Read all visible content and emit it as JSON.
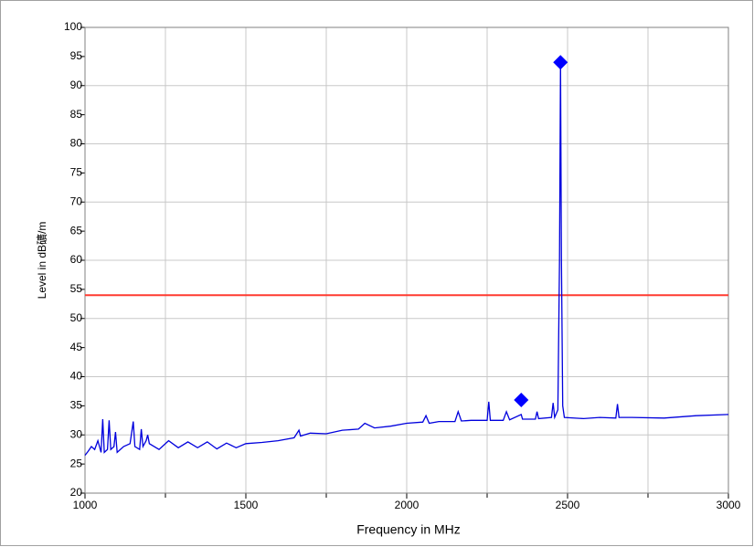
{
  "chart_data": {
    "type": "line",
    "x_label": "Frequency in MHz",
    "y_label": "Level in dB礦/m",
    "xlim": [
      1000,
      3000
    ],
    "ylim": [
      20,
      100
    ],
    "xticks": [
      1000,
      1500,
      2000,
      2500,
      3000
    ],
    "x_minor_ticks": [
      1250,
      1750,
      2250,
      2750
    ],
    "yticks": [
      20,
      25,
      30,
      35,
      40,
      45,
      50,
      55,
      60,
      65,
      70,
      75,
      80,
      85,
      90,
      95,
      100
    ],
    "y_grid": [
      30,
      40,
      50,
      60,
      70,
      80,
      90
    ],
    "grid": true,
    "hlines": [
      {
        "value": 54,
        "color": "#ff3b30"
      }
    ],
    "series": [
      {
        "color": "#0000dd",
        "style": "line",
        "x": [
          1000,
          1010,
          1020,
          1030,
          1040,
          1050,
          1055,
          1060,
          1070,
          1075,
          1080,
          1090,
          1095,
          1100,
          1120,
          1140,
          1150,
          1155,
          1170,
          1175,
          1180,
          1190,
          1195,
          1200,
          1230,
          1260,
          1290,
          1320,
          1350,
          1380,
          1410,
          1440,
          1470,
          1500,
          1550,
          1600,
          1650,
          1665,
          1670,
          1700,
          1750,
          1800,
          1850,
          1870,
          1900,
          1950,
          2000,
          2050,
          2060,
          2070,
          2100,
          2150,
          2160,
          2170,
          2200,
          2250,
          2255,
          2260,
          2300,
          2310,
          2320,
          2356,
          2360,
          2400,
          2405,
          2410,
          2450,
          2455,
          2460,
          2470,
          2475,
          2478,
          2481,
          2485,
          2490,
          2550,
          2600,
          2650,
          2655,
          2660,
          2700,
          2800,
          2900,
          3000
        ],
        "values": [
          26.5,
          27.2,
          28,
          27.5,
          29,
          27,
          32.7,
          27,
          27.5,
          32.5,
          27.5,
          28,
          30.5,
          27,
          28,
          28.5,
          32.3,
          28,
          27.5,
          31,
          28,
          29,
          30,
          28.5,
          27.5,
          29,
          27.8,
          28.8,
          27.8,
          28.8,
          27.6,
          28.6,
          27.8,
          28.5,
          28.7,
          29,
          29.5,
          30.8,
          29.8,
          30.3,
          30.2,
          30.8,
          31,
          32,
          31.2,
          31.5,
          32,
          32.2,
          33.3,
          32,
          32.3,
          32.3,
          34,
          32.4,
          32.5,
          32.5,
          35.7,
          32.5,
          32.5,
          34,
          32.6,
          33.5,
          32.7,
          32.7,
          34,
          32.8,
          33,
          35.5,
          33,
          34.3,
          60,
          94,
          60,
          35,
          33,
          32.8,
          33,
          32.9,
          35.3,
          33,
          33,
          32.9,
          33.3,
          33.5
        ]
      },
      {
        "color": "#0000ff",
        "style": "marker",
        "x": [
          2356,
          2478
        ],
        "values": [
          36,
          94
        ]
      }
    ]
  }
}
